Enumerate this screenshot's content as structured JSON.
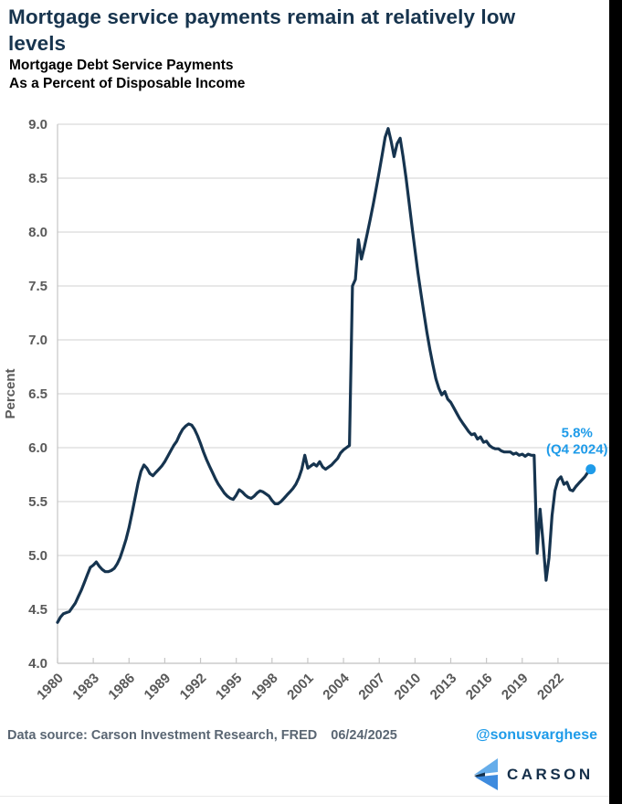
{
  "page": {
    "title": "Mortgage service payments remain at relatively low levels"
  },
  "footer": {
    "source": "Data source: Carson Investment Research, FRED",
    "date": "06/24/2025",
    "handle": "@sonusvarghese",
    "logo_text": "CARSON"
  },
  "chart_data": {
    "type": "line",
    "title_lines": [
      "Mortgage Debt Service Payments",
      "As a Percent of Disposable Income"
    ],
    "ylabel": "Percent",
    "ylim": [
      4.0,
      9.0
    ],
    "yticks": [
      4.0,
      4.5,
      5.0,
      5.5,
      6.0,
      6.5,
      7.0,
      7.5,
      8.0,
      8.5,
      9.0
    ],
    "xlim": [
      1980,
      2026.3
    ],
    "xticks": [
      1980,
      1983,
      1986,
      1989,
      1992,
      1995,
      1998,
      2001,
      2004,
      2007,
      2010,
      2013,
      2016,
      2019,
      2022
    ],
    "grid": "horizontal-only",
    "legend": "none",
    "line_color": "#16344F",
    "accent_color": "#1E9BE9",
    "grid_color": "#D9D9D9",
    "axis_color": "#C6C6C6",
    "tick_label_color": "#595959",
    "annotation": {
      "line1": "5.8%",
      "line2": "(Q4 2024)",
      "x": 2024.75,
      "y": 5.8
    },
    "series": [
      {
        "name": "Mortgage Debt Service Payments (% of Disposable Income)",
        "x_start": 1980,
        "x_step": 0.25,
        "values": [
          4.38,
          4.43,
          4.46,
          4.47,
          4.48,
          4.52,
          4.56,
          4.62,
          4.68,
          4.75,
          4.82,
          4.89,
          4.91,
          4.94,
          4.9,
          4.87,
          4.85,
          4.85,
          4.86,
          4.88,
          4.92,
          4.98,
          5.06,
          5.15,
          5.26,
          5.39,
          5.53,
          5.67,
          5.78,
          5.84,
          5.81,
          5.76,
          5.74,
          5.77,
          5.8,
          5.83,
          5.87,
          5.92,
          5.97,
          6.02,
          6.06,
          6.12,
          6.17,
          6.2,
          6.22,
          6.21,
          6.17,
          6.11,
          6.04,
          5.96,
          5.89,
          5.83,
          5.77,
          5.71,
          5.66,
          5.62,
          5.58,
          5.55,
          5.53,
          5.52,
          5.56,
          5.61,
          5.59,
          5.56,
          5.54,
          5.53,
          5.55,
          5.58,
          5.6,
          5.59,
          5.57,
          5.55,
          5.51,
          5.48,
          5.48,
          5.5,
          5.53,
          5.56,
          5.59,
          5.62,
          5.66,
          5.72,
          5.8,
          5.93,
          5.81,
          5.83,
          5.85,
          5.83,
          5.87,
          5.82,
          5.8,
          5.82,
          5.84,
          5.87,
          5.9,
          5.95,
          5.98,
          6.0,
          6.02,
          7.5,
          7.56,
          7.93,
          7.75,
          7.86,
          7.99,
          8.12,
          8.26,
          8.41,
          8.56,
          8.72,
          8.88,
          8.96,
          8.84,
          8.7,
          8.82,
          8.87,
          8.7,
          8.5,
          8.28,
          8.05,
          7.83,
          7.62,
          7.43,
          7.25,
          7.07,
          6.91,
          6.77,
          6.64,
          6.55,
          6.49,
          6.52,
          6.45,
          6.42,
          6.37,
          6.32,
          6.27,
          6.23,
          6.19,
          6.15,
          6.12,
          6.13,
          6.08,
          6.1,
          6.05,
          6.06,
          6.02,
          6.0,
          5.99,
          5.99,
          5.97,
          5.96,
          5.96,
          5.96,
          5.94,
          5.95,
          5.93,
          5.94,
          5.92,
          5.94,
          5.93,
          5.93,
          5.02,
          5.43,
          5.12,
          4.77,
          4.98,
          5.37,
          5.6,
          5.7,
          5.73,
          5.66,
          5.68,
          5.61,
          5.6,
          5.64,
          5.67,
          5.7,
          5.73,
          5.77,
          5.8
        ]
      }
    ]
  }
}
